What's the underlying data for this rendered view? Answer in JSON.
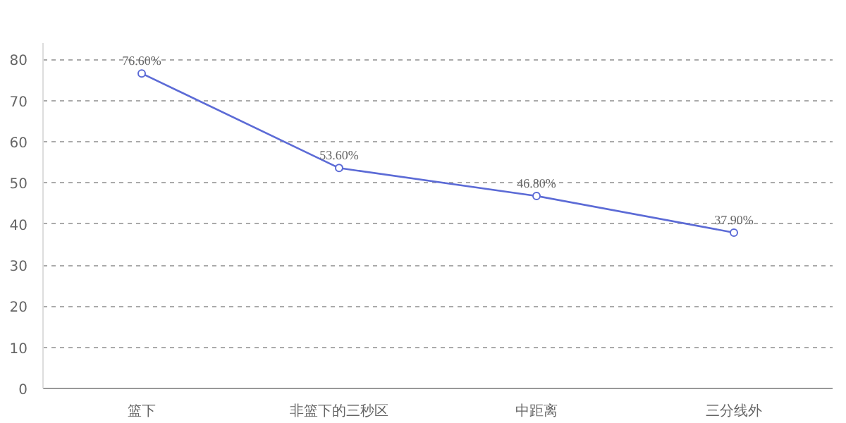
{
  "chart_data": {
    "type": "line",
    "categories": [
      "篮下",
      "非篮下的三秒区",
      "中距离",
      "三分线外"
    ],
    "series": [
      {
        "color": "#5c6bd6",
        "values": [
          76.6,
          53.6,
          46.8,
          37.9
        ],
        "value_labels": [
          "76.60%",
          "53.60%",
          "46.80%",
          "37.90%"
        ]
      }
    ],
    "ylim": [
      0,
      84
    ],
    "yticks": [
      0,
      10,
      20,
      30,
      40,
      50,
      60,
      70,
      80
    ],
    "grid": "y",
    "marker": "circle",
    "line_style": "solid"
  }
}
